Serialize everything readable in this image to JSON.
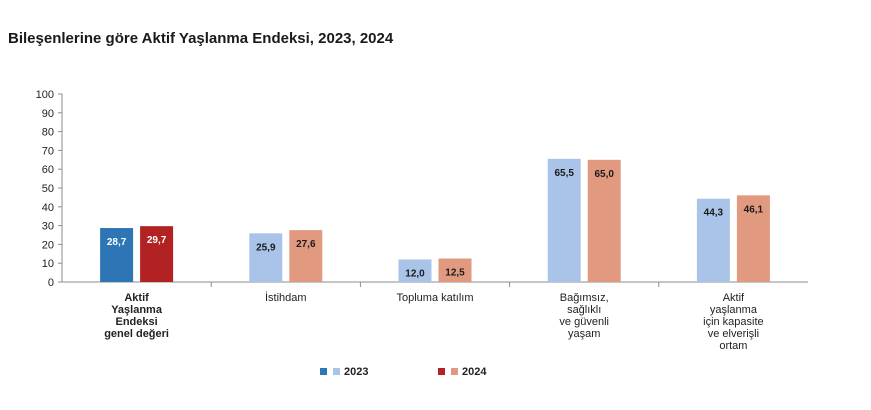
{
  "title": "Bileşenlerine göre Aktif Yaşlanma Endeksi, 2023, 2024",
  "chart_data": {
    "type": "bar",
    "title": "Bileşenlerine göre Aktif Yaşlanma Endeksi, 2023, 2024",
    "ylim": [
      0,
      100
    ],
    "yticks": [
      0,
      10,
      20,
      30,
      40,
      50,
      60,
      70,
      80,
      90,
      100
    ],
    "categories": [
      [
        "Aktif",
        "Yaşlanma",
        "Endeksi",
        "genel değeri"
      ],
      [
        "İstihdam"
      ],
      [
        "Topluma katılım"
      ],
      [
        "Bağımsız,",
        "sağlıklı",
        "ve güvenli",
        "yaşam"
      ],
      [
        "Aktif",
        "yaşlanma",
        "için kapasite",
        "ve elverişli",
        "ortam"
      ]
    ],
    "series": [
      {
        "name": "2023",
        "values": [
          28.7,
          25.9,
          12.0,
          65.5,
          44.3
        ],
        "labels": [
          "28,7",
          "25,9",
          "12,0",
          "65,5",
          "44,3"
        ],
        "color_highlight": "#2E75B6",
        "color": "#A9C4E8"
      },
      {
        "name": "2024",
        "values": [
          29.7,
          27.6,
          12.5,
          65.0,
          46.1
        ],
        "labels": [
          "29,7",
          "27,6",
          "12,5",
          "65,0",
          "46,1"
        ],
        "color_highlight": "#B22222",
        "color": "#E19A80"
      }
    ],
    "grid": false,
    "legend": "bottom-center"
  }
}
